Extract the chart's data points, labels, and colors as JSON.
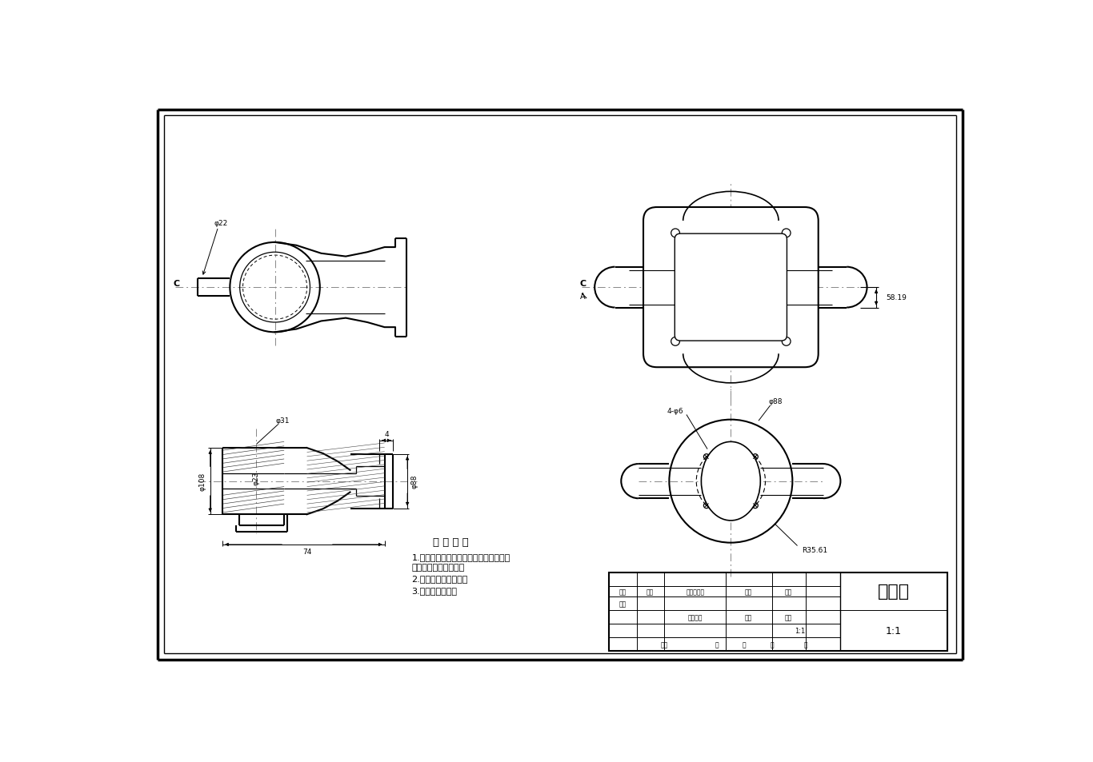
{
  "bg_color": "#ffffff",
  "lc": "#000000",
  "title": "滑动叉",
  "tech_req_title": "技 术 要 求",
  "tech_req": [
    "1.零件加工表面上，不应有划痕、擦伤等",
    "损伤零件表面的缺陷。",
    "2.零件须去除氧化皮。",
    "3.去除毛刺飞边。"
  ],
  "dim_phi22": "φ22",
  "dim_phi31": "φ31",
  "dim_phi23": "φ23",
  "dim_phi108": "φ108",
  "dim_phi88": "φ88",
  "dim_74": "74",
  "dim_4": "4",
  "dim_5819": "58.19",
  "dim_4phi6": "4-φ6",
  "dim_r3561": "R35.61",
  "label_C": "C",
  "label_A": "A",
  "scale": "1:1",
  "tb_labels": [
    "标记",
    "处数",
    "更改文件号",
    "签字",
    "日期"
  ],
  "tb_labels2": [
    "设计",
    "阶段标记",
    "重量",
    "比例"
  ],
  "tb_labels3": [
    "日期",
    "角",
    "度",
    "第",
    "张"
  ]
}
